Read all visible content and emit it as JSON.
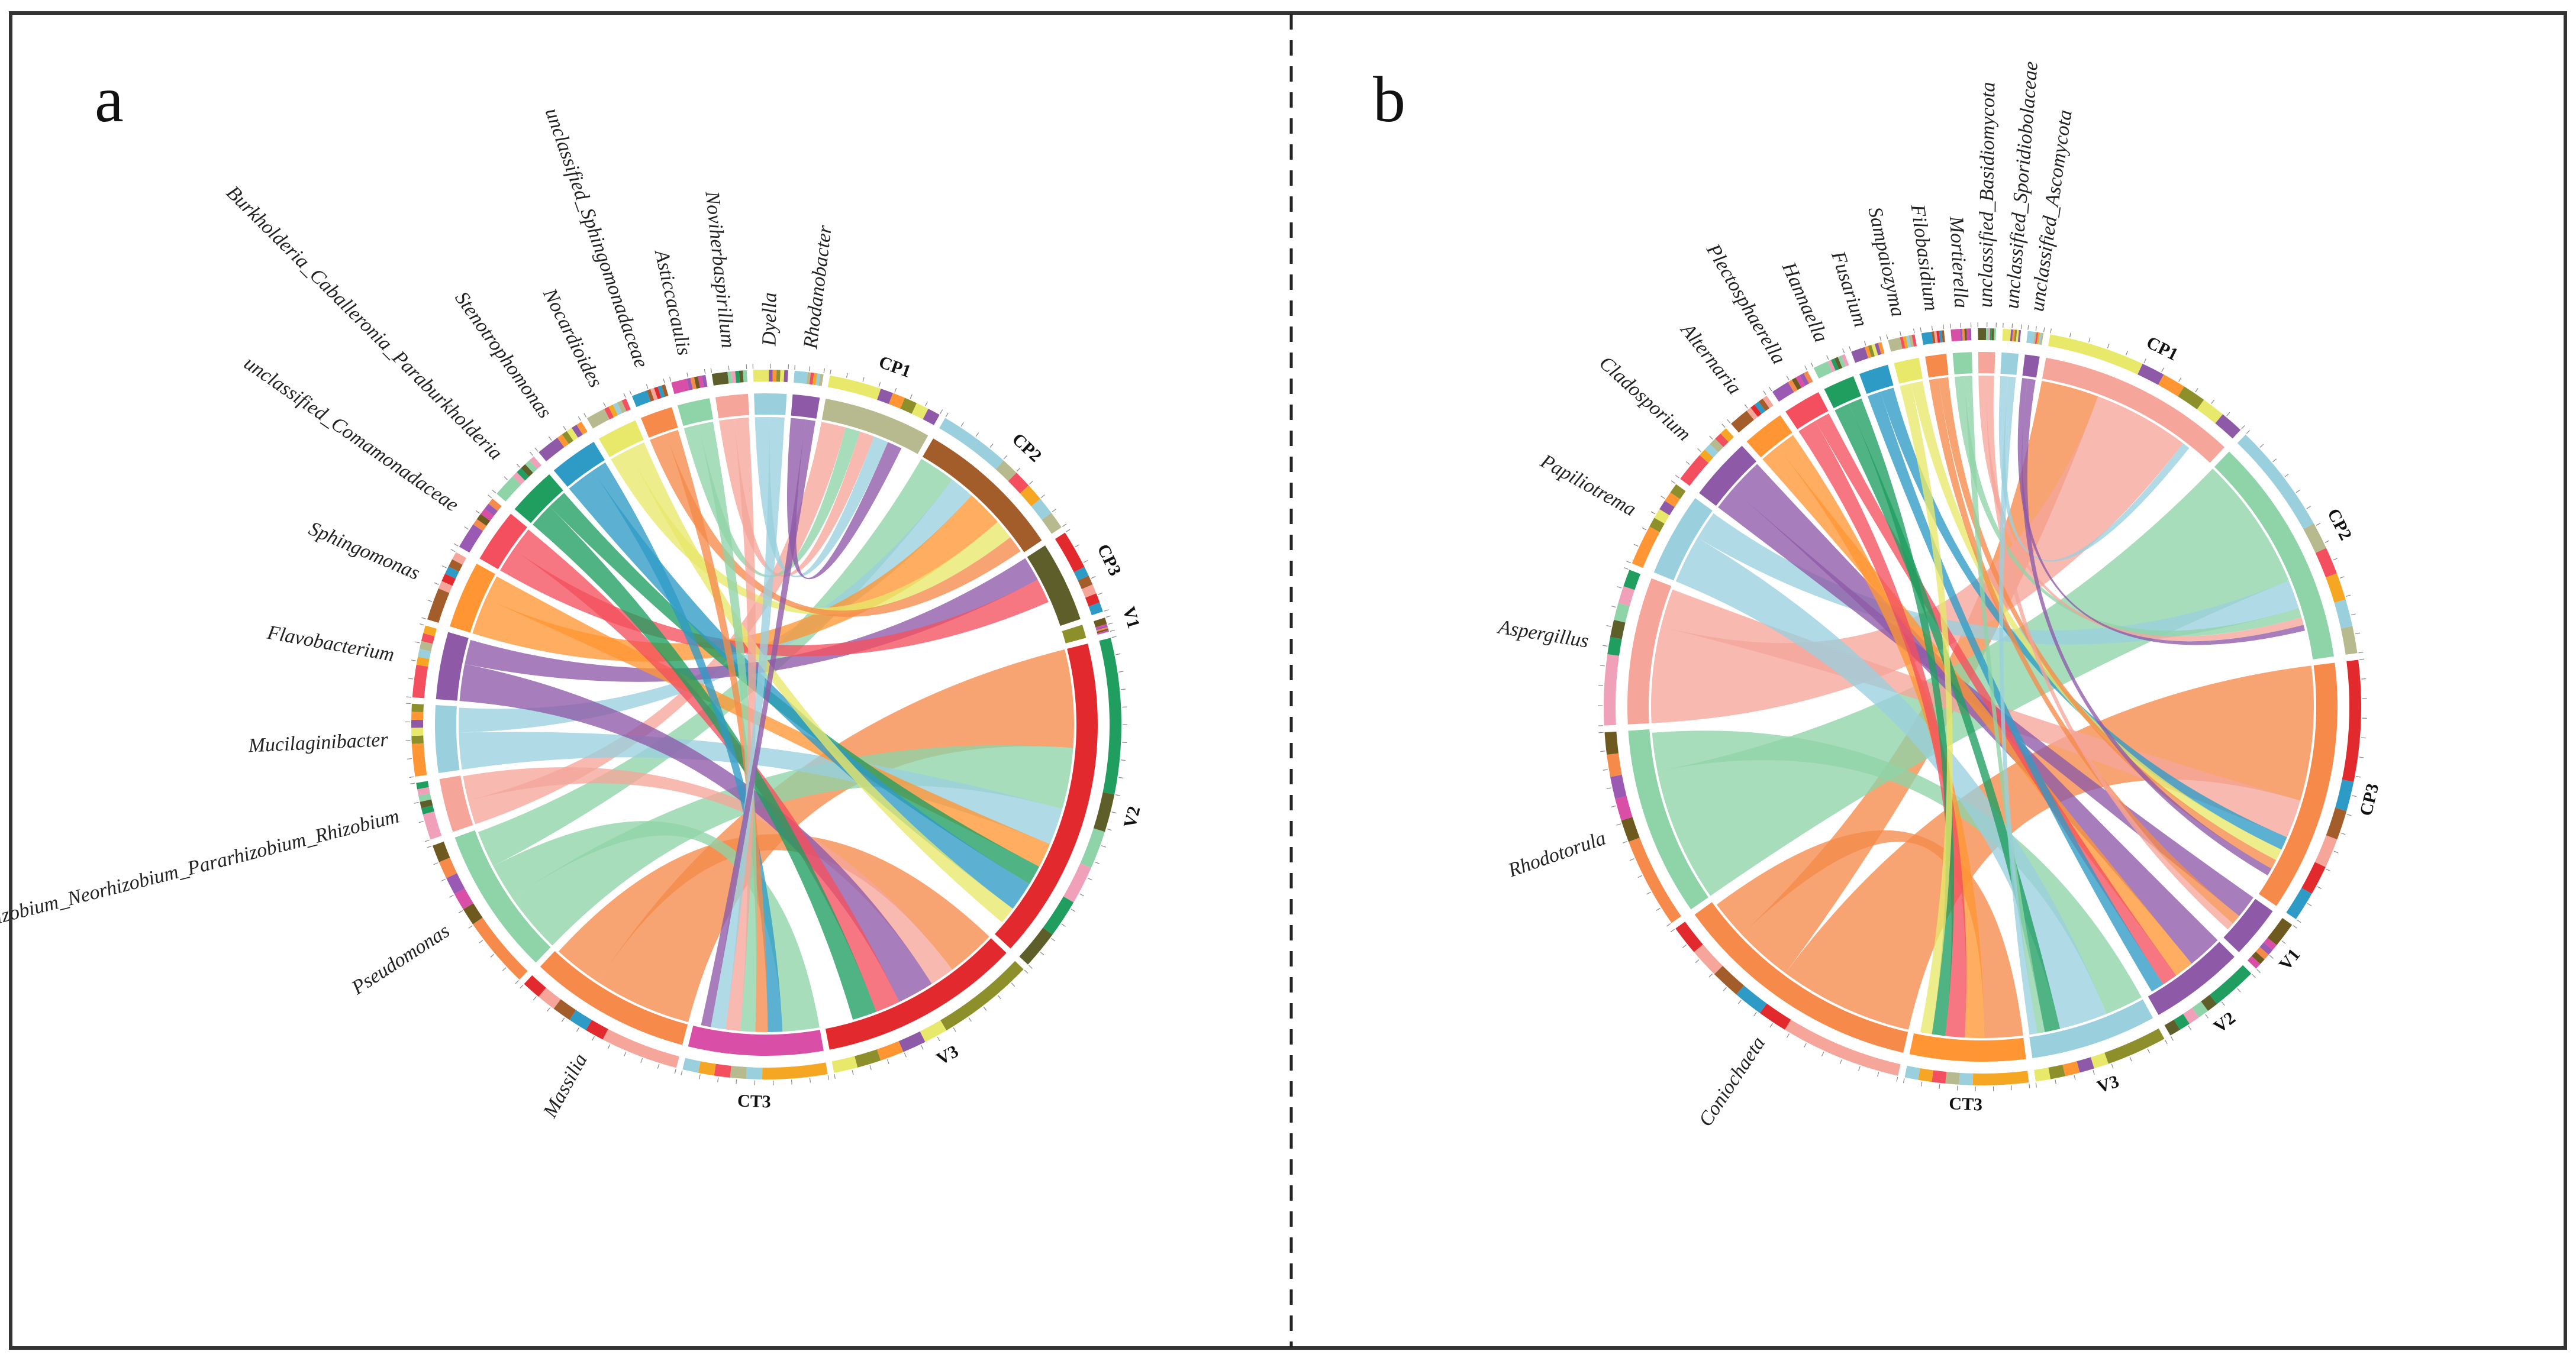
{
  "figure": {
    "panels": [
      "a",
      "b"
    ]
  },
  "palette": [
    "#e8e86a",
    "#f5a59a",
    "#8fd3a8",
    "#9ad0de",
    "#f58a4a",
    "#8e5aa8",
    "#e2292e",
    "#f0a0b8",
    "#b7b98e",
    "#6e5a1e",
    "#ff9633",
    "#2e9bc7",
    "#1f9e60",
    "#f44f5e",
    "#d94fa8",
    "#8d8f2a",
    "#a35d2a",
    "#5e5e2a",
    "#f5a623",
    "#9a5ab4"
  ],
  "chart_data": [
    {
      "type": "chord",
      "panel": "a",
      "title": "",
      "groups": [
        {
          "name": "CP1",
          "type": "sample",
          "value": 40,
          "color": "#b7b98e"
        },
        {
          "name": "CP2",
          "type": "sample",
          "value": 55,
          "color": "#a35d2a"
        },
        {
          "name": "CP3",
          "type": "sample",
          "value": 30,
          "color": "#5e5e2a"
        },
        {
          "name": "V1",
          "type": "sample",
          "value": 5,
          "color": "#8d8f2a"
        },
        {
          "name": "V2",
          "type": "sample",
          "value": 120,
          "color": "#e2292e"
        },
        {
          "name": "V3",
          "type": "sample",
          "value": 75,
          "color": "#e2292e"
        },
        {
          "name": "CT3",
          "type": "sample",
          "value": 50,
          "color": "#d94fa8"
        },
        {
          "name": "Massilia",
          "type": "taxon",
          "value": 60,
          "color": "#f58a4a"
        },
        {
          "name": "Pseudomonas",
          "type": "taxon",
          "value": 55,
          "color": "#8fd3a8"
        },
        {
          "name": "Allorhizobium_Neorhizobium_Pararhizobium_Rhizobium",
          "type": "taxon",
          "value": 20,
          "color": "#f5a59a"
        },
        {
          "name": "Mucilaginibacter",
          "type": "taxon",
          "value": 25,
          "color": "#9ad0de"
        },
        {
          "name": "Flavobacterium",
          "type": "taxon",
          "value": 25,
          "color": "#8e5aa8"
        },
        {
          "name": "Sphingomonas",
          "type": "taxon",
          "value": 25,
          "color": "#ff9633"
        },
        {
          "name": "unclassified_Comamonadaceae",
          "type": "taxon",
          "value": 20,
          "color": "#f44f5e"
        },
        {
          "name": "Burkholderia_Caballeronia_Paraburkholderia",
          "type": "taxon",
          "value": 18,
          "color": "#1f9e60"
        },
        {
          "name": "Stenotrophomonas",
          "type": "taxon",
          "value": 18,
          "color": "#2e9bc7"
        },
        {
          "name": "Nocardioides",
          "type": "taxon",
          "value": 15,
          "color": "#e8e86a"
        },
        {
          "name": "unclassified_Sphingomonadaceae",
          "type": "taxon",
          "value": 12,
          "color": "#f58a4a"
        },
        {
          "name": "Asticcacaulis",
          "type": "taxon",
          "value": 12,
          "color": "#8fd3a8"
        },
        {
          "name": "Noviherbaspirillum",
          "type": "taxon",
          "value": 12,
          "color": "#f5a59a"
        },
        {
          "name": "Dyella",
          "type": "taxon",
          "value": 12,
          "color": "#9ad0de"
        },
        {
          "name": "Rhodanobacter",
          "type": "taxon",
          "value": 10,
          "color": "#8e5aa8"
        }
      ],
      "links": [
        [
          "Massilia",
          "V2",
          40
        ],
        [
          "Massilia",
          "V3",
          20
        ],
        [
          "Pseudomonas",
          "V2",
          25
        ],
        [
          "Pseudomonas",
          "CT3",
          15
        ],
        [
          "Pseudomonas",
          "CP2",
          15
        ],
        [
          "Allorhizobium_Neorhizobium_Pararhizobium_Rhizobium",
          "CP1",
          10
        ],
        [
          "Allorhizobium_Neorhizobium_Pararhizobium_Rhizobium",
          "V3",
          10
        ],
        [
          "Mucilaginibacter",
          "V2",
          15
        ],
        [
          "Mucilaginibacter",
          "CP2",
          10
        ],
        [
          "Flavobacterium",
          "V3",
          15
        ],
        [
          "Flavobacterium",
          "CP3",
          10
        ],
        [
          "Sphingomonas",
          "CP2",
          15
        ],
        [
          "Sphingomonas",
          "V2",
          10
        ],
        [
          "unclassified_Comamonadaceae",
          "CP3",
          10
        ],
        [
          "unclassified_Comamonadaceae",
          "V3",
          10
        ],
        [
          "Burkholderia_Caballeronia_Paraburkholderia",
          "V3",
          10
        ],
        [
          "Burkholderia_Caballeronia_Paraburkholderia",
          "V2",
          8
        ],
        [
          "Stenotrophomonas",
          "V2",
          12
        ],
        [
          "Stenotrophomonas",
          "CT3",
          6
        ],
        [
          "Nocardioides",
          "CP2",
          8
        ],
        [
          "Nocardioides",
          "V2",
          7
        ],
        [
          "unclassified_Sphingomonadaceae",
          "CP2",
          7
        ],
        [
          "unclassified_Sphingomonadaceae",
          "CT3",
          5
        ],
        [
          "Asticcacaulis",
          "CP1",
          6
        ],
        [
          "Asticcacaulis",
          "CT3",
          6
        ],
        [
          "Noviherbaspirillum",
          "CP1",
          6
        ],
        [
          "Noviherbaspirillum",
          "CT3",
          6
        ],
        [
          "Dyella",
          "CP1",
          6
        ],
        [
          "Dyella",
          "CT3",
          6
        ],
        [
          "Rhodanobacter",
          "CP1",
          6
        ],
        [
          "Rhodanobacter",
          "CT3",
          4
        ]
      ]
    },
    {
      "type": "chord",
      "panel": "b",
      "title": "",
      "groups": [
        {
          "name": "CP1",
          "type": "sample",
          "value": 95,
          "color": "#f5a59a"
        },
        {
          "name": "CP2",
          "type": "sample",
          "value": 110,
          "color": "#8fd3a8"
        },
        {
          "name": "CP3",
          "type": "sample",
          "value": 120,
          "color": "#f58a4a"
        },
        {
          "name": "V1",
          "type": "sample",
          "value": 25,
          "color": "#8e5aa8"
        },
        {
          "name": "V2",
          "type": "sample",
          "value": 45,
          "color": "#8e5aa8"
        },
        {
          "name": "V3",
          "type": "sample",
          "value": 60,
          "color": "#9ad0de"
        },
        {
          "name": "CT3",
          "type": "sample",
          "value": 55,
          "color": "#ff9633"
        },
        {
          "name": "Coniochaeta",
          "type": "taxon",
          "value": 120,
          "color": "#f58a4a"
        },
        {
          "name": "Rhodotorula",
          "type": "taxon",
          "value": 90,
          "color": "#8fd3a8"
        },
        {
          "name": "Aspergillus",
          "type": "taxon",
          "value": 70,
          "color": "#f5a59a"
        },
        {
          "name": "Papiliotrema",
          "type": "taxon",
          "value": 40,
          "color": "#9ad0de"
        },
        {
          "name": "Cladosporium",
          "type": "taxon",
          "value": 30,
          "color": "#8e5aa8"
        },
        {
          "name": "Alternaria",
          "type": "taxon",
          "value": 20,
          "color": "#ff9633"
        },
        {
          "name": "Plectosphaerella",
          "type": "taxon",
          "value": 18,
          "color": "#f44f5e"
        },
        {
          "name": "Hannaella",
          "type": "taxon",
          "value": 15,
          "color": "#1f9e60"
        },
        {
          "name": "Fusarium",
          "type": "taxon",
          "value": 14,
          "color": "#2e9bc7"
        },
        {
          "name": "Sampaiozyma",
          "type": "taxon",
          "value": 12,
          "color": "#e8e86a"
        },
        {
          "name": "Filobasidium",
          "type": "taxon",
          "value": 10,
          "color": "#f58a4a"
        },
        {
          "name": "Mortierella",
          "type": "taxon",
          "value": 9,
          "color": "#8fd3a8"
        },
        {
          "name": "unclassified_Basidiomycota",
          "type": "taxon",
          "value": 8,
          "color": "#f5a59a"
        },
        {
          "name": "unclassified_Sporidiobolaceae",
          "type": "taxon",
          "value": 8,
          "color": "#9ad0de"
        },
        {
          "name": "unclassified_Ascomycota",
          "type": "taxon",
          "value": 7,
          "color": "#8e5aa8"
        }
      ],
      "links": [
        [
          "Coniochaeta",
          "CP3",
          70
        ],
        [
          "Coniochaeta",
          "CP1",
          30
        ],
        [
          "Coniochaeta",
          "CT3",
          20
        ],
        [
          "Rhodotorula",
          "CP2",
          70
        ],
        [
          "Rhodotorula",
          "V3",
          20
        ],
        [
          "Aspergillus",
          "CP1",
          50
        ],
        [
          "Aspergillus",
          "CP3",
          20
        ],
        [
          "Papiliotrema",
          "V3",
          25
        ],
        [
          "Papiliotrema",
          "CP2",
          15
        ],
        [
          "Cladosporium",
          "V1",
          12
        ],
        [
          "Cladosporium",
          "V2",
          18
        ],
        [
          "Alternaria",
          "V2",
          10
        ],
        [
          "Alternaria",
          "CT3",
          10
        ],
        [
          "Plectosphaerella",
          "CT3",
          10
        ],
        [
          "Plectosphaerella",
          "V2",
          8
        ],
        [
          "Hannaella",
          "V3",
          8
        ],
        [
          "Hannaella",
          "CT3",
          7
        ],
        [
          "Fusarium",
          "V2",
          7
        ],
        [
          "Fusarium",
          "CP3",
          7
        ],
        [
          "Sampaiozyma",
          "CT3",
          6
        ],
        [
          "Sampaiozyma",
          "CP3",
          6
        ],
        [
          "Filobasidium",
          "V1",
          5
        ],
        [
          "Filobasidium",
          "CP3",
          5
        ],
        [
          "Mortierella",
          "CP2",
          5
        ],
        [
          "Mortierella",
          "V3",
          4
        ],
        [
          "unclassified_Basidiomycota",
          "CP2",
          4
        ],
        [
          "unclassified_Basidiomycota",
          "V1",
          4
        ],
        [
          "unclassified_Sporidiobolaceae",
          "CP1",
          4
        ],
        [
          "unclassified_Sporidiobolaceae",
          "V3",
          4
        ],
        [
          "unclassified_Ascomycota",
          "CP2",
          3
        ],
        [
          "unclassified_Ascomycota",
          "CP3",
          4
        ]
      ]
    }
  ]
}
